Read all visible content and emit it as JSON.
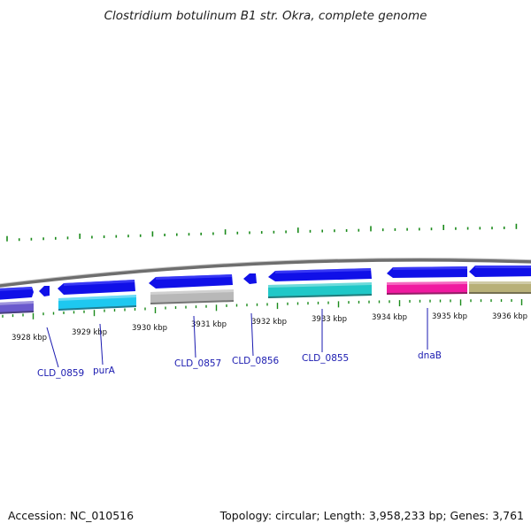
{
  "title": "Clostridium botulinum B1 str. Okra, complete genome",
  "footer": {
    "accession": "Accession: NC_010516",
    "summary": "Topology: circular; Length: 3,958,233 bp; Genes: 3,761"
  },
  "colors": {
    "backbone": "#8a8a8a",
    "gc_ticks": "#1a8a1a",
    "forward_gene": "#1010e8",
    "label": "#1a1ab0"
  },
  "scale_labels": [
    "3928 kbp",
    "3929 kbp",
    "3930 kbp",
    "3931 kbp",
    "3932 kbp",
    "3933 kbp",
    "3934 kbp",
    "3935 kbp",
    "3936 kbp"
  ],
  "gene_labels": [
    "CLD_0859",
    "purA",
    "CLD_0857",
    "CLD_0856",
    "CLD_0855",
    "dnaB"
  ],
  "cog_colors": [
    "#6a5acd",
    "#1ec8f0",
    "#b8b8b8",
    "#20c8c8",
    "#f01aa0",
    "#b8b078"
  ]
}
